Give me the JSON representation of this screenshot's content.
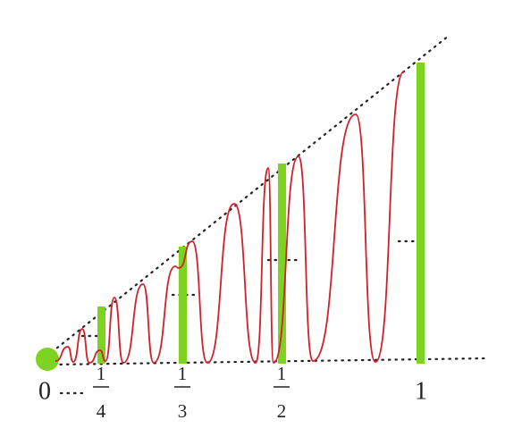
{
  "labels": [
    "0",
    {
      "numerator": "1",
      "denominator": "4"
    },
    {
      "numerator": "1",
      "denominator": "3"
    },
    {
      "numerator": "1",
      "denominator": "2"
    },
    "1"
  ]
}
